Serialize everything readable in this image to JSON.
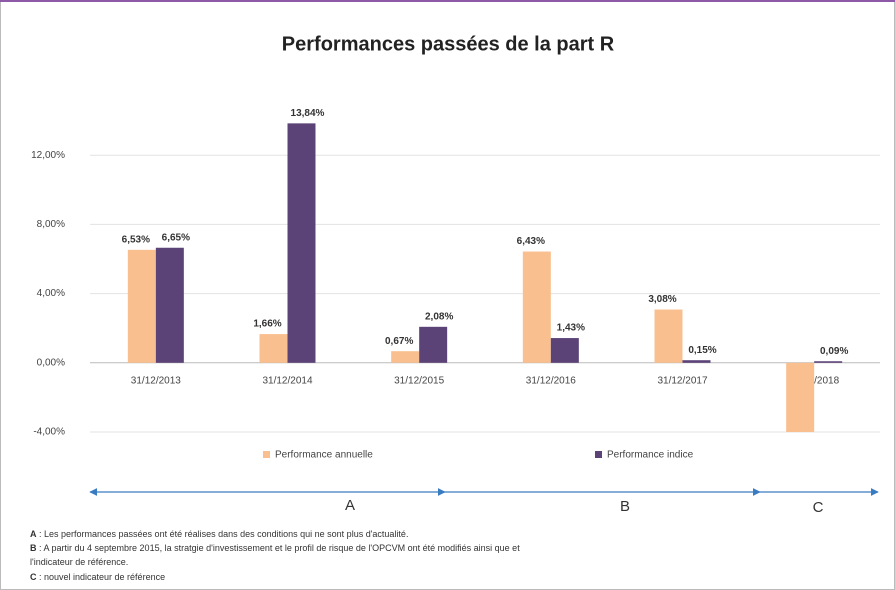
{
  "chart_data": {
    "type": "bar",
    "title": "Performances passées de la part R",
    "categories": [
      "31/12/2013",
      "31/12/2014",
      "31/12/2015",
      "31/12/2016",
      "31/12/2017",
      "31/12/2018"
    ],
    "series": [
      {
        "name": "Performance annuelle",
        "color": "#f9bf8f",
        "values": [
          6.53,
          1.66,
          0.67,
          6.43,
          3.08,
          -4.0
        ],
        "value_labels": [
          "6,53%",
          "1,66%",
          "0,67%",
          "6,43%",
          "3,08%",
          null
        ]
      },
      {
        "name": "Performance indice",
        "color": "#5b4378",
        "values": [
          6.65,
          13.84,
          2.08,
          1.43,
          0.15,
          0.09
        ],
        "value_labels": [
          "6,65%",
          "13,84%",
          "2,08%",
          "1,43%",
          "0,15%",
          "0,09%"
        ]
      }
    ],
    "ylim": [
      -4,
      16
    ],
    "yticks": [
      {
        "value": -4,
        "label": "-4,00%"
      },
      {
        "value": 0,
        "label": "0,00%"
      },
      {
        "value": 4,
        "label": "4,00%"
      },
      {
        "value": 8,
        "label": "8,00%"
      },
      {
        "value": 12,
        "label": "12,00%"
      }
    ],
    "grid": true,
    "legend": "bottom",
    "periods": [
      "A",
      "B",
      "C"
    ],
    "notes": [
      {
        "letter": "A",
        "text": " : Les performances passées ont été réalises dans des conditions qui ne sont plus d'actualité."
      },
      {
        "letter": "B",
        "text": " : A partir du 4 septembre 2015, la stratgie d'investissement et le profil de risque de l'OPCVM ont été modifiés ainsi que  et"
      },
      {
        "text": "l'indicateur de référence."
      },
      {
        "letter": "C",
        "text": " : nouvel indicateur de référence"
      }
    ]
  }
}
